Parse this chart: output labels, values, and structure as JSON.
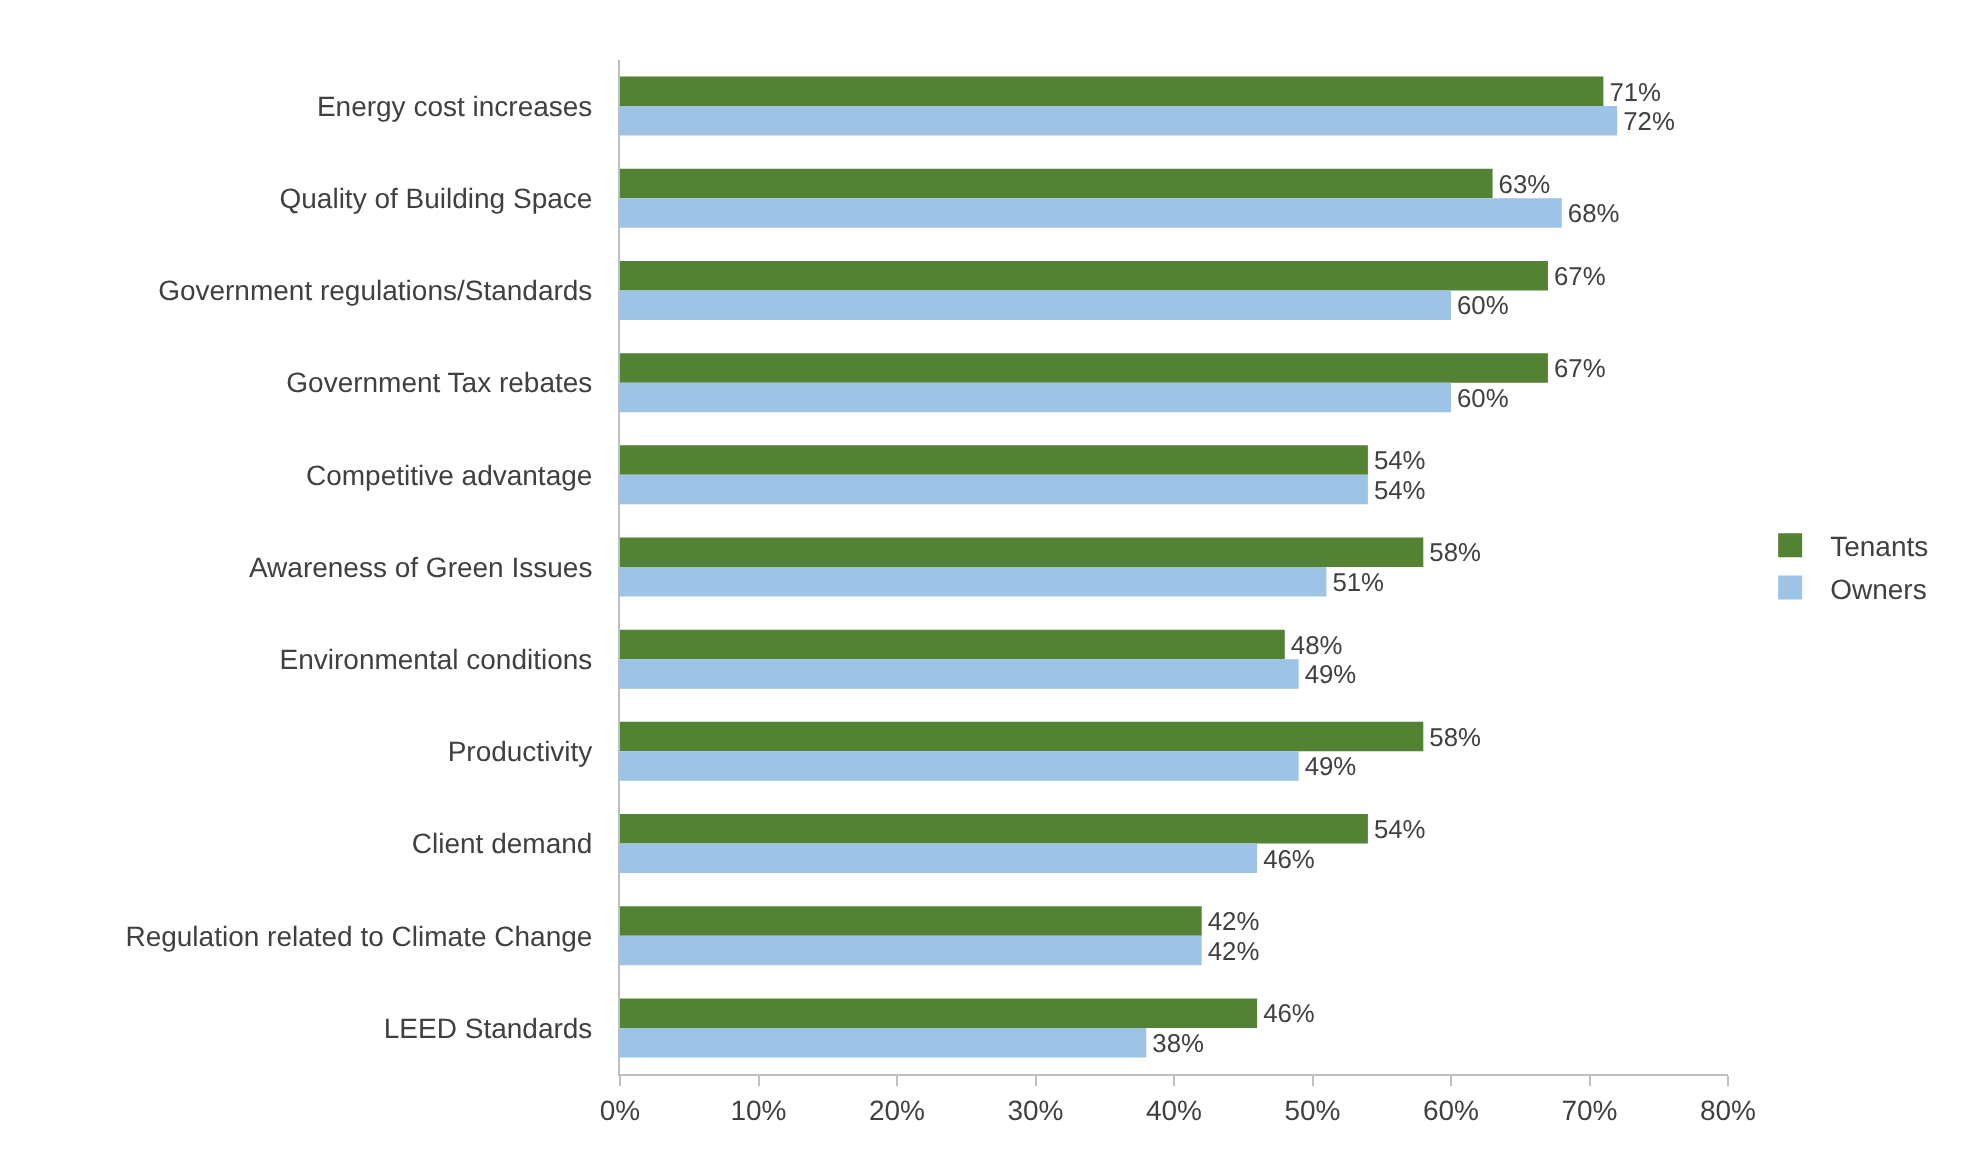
{
  "chart_data": {
    "type": "bar",
    "orientation": "horizontal",
    "categories": [
      "Energy cost increases",
      "Quality of Building Space",
      "Government regulations/Standards",
      "Government Tax rebates",
      "Competitive advantage",
      "Awareness of Green Issues",
      "Environmental conditions",
      "Productivity",
      "Client demand",
      "Regulation related to Climate Change",
      "LEED Standards"
    ],
    "series": [
      {
        "name": "Tenants",
        "color": "#548235",
        "values": [
          71,
          63,
          67,
          67,
          54,
          58,
          48,
          58,
          54,
          42,
          46
        ],
        "value_labels": [
          "71%",
          "63%",
          "67%",
          "67%",
          "54%",
          "58%",
          "48%",
          "58%",
          "54%",
          "42%",
          "46%"
        ]
      },
      {
        "name": "Owners",
        "color": "#9dc3e6",
        "values": [
          72,
          68,
          60,
          60,
          54,
          51,
          49,
          49,
          46,
          42,
          38
        ],
        "value_labels": [
          "72%",
          "68%",
          "60%",
          "60%",
          "54%",
          "51%",
          "49%",
          "49%",
          "46%",
          "42%",
          "38%"
        ]
      }
    ],
    "xlim": [
      0,
      80
    ],
    "xticks": [
      {
        "value": 0,
        "label": "0%"
      },
      {
        "value": 10,
        "label": "10%"
      },
      {
        "value": 20,
        "label": "20%"
      },
      {
        "value": 30,
        "label": "30%"
      },
      {
        "value": 40,
        "label": "40%"
      },
      {
        "value": 50,
        "label": "50%"
      },
      {
        "value": 60,
        "label": "60%"
      },
      {
        "value": 70,
        "label": "70%"
      },
      {
        "value": 80,
        "label": "80%"
      }
    ],
    "grid": false,
    "legend": "right"
  }
}
